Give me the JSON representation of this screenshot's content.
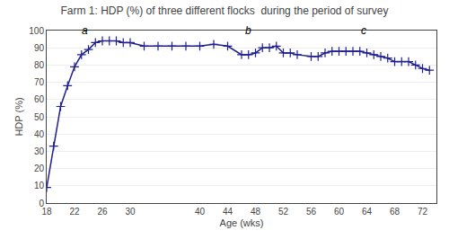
{
  "chart_data": {
    "type": "line",
    "title": "Farm 1: HDP (%) of three different flocks  during the period of survey",
    "x_label": "Age (wks)",
    "y_label": "HDP (%)",
    "color": "#1F1F8F",
    "marker": "plus",
    "x": [
      18,
      19,
      20,
      21,
      22,
      23,
      24,
      25,
      26,
      27,
      28,
      29,
      30,
      32,
      34,
      36,
      38,
      40,
      42,
      44,
      46,
      47,
      48,
      49,
      50,
      51,
      52,
      53,
      54,
      56,
      57,
      58,
      59,
      60,
      61,
      62,
      63,
      64,
      65,
      66,
      67,
      68,
      69,
      70,
      71,
      72,
      73
    ],
    "values": [
      9,
      33,
      56,
      68,
      79,
      86,
      89,
      93,
      94,
      94,
      94,
      93,
      93,
      91,
      91,
      91,
      91,
      91,
      92,
      91,
      86,
      86,
      87,
      90,
      90,
      91,
      87,
      87,
      86,
      85,
      85,
      87,
      88,
      88,
      88,
      88,
      88,
      87,
      86,
      85,
      84,
      82,
      82,
      82,
      80,
      78,
      77
    ],
    "xlim": [
      18,
      74
    ],
    "ylim": [
      0,
      100
    ],
    "xticks": [
      18,
      22,
      26,
      30,
      40,
      44,
      48,
      52,
      56,
      60,
      64,
      68,
      72
    ],
    "yticks": [
      0,
      10,
      20,
      30,
      40,
      50,
      60,
      70,
      80,
      90,
      100
    ],
    "grid": "y",
    "annotations": [
      {
        "text": "a",
        "x": 23.5,
        "y": 95.5
      },
      {
        "text": "b",
        "x": 47.0,
        "y": 95.5
      },
      {
        "text": "c",
        "x": 63.5,
        "y": 95.5
      }
    ]
  }
}
